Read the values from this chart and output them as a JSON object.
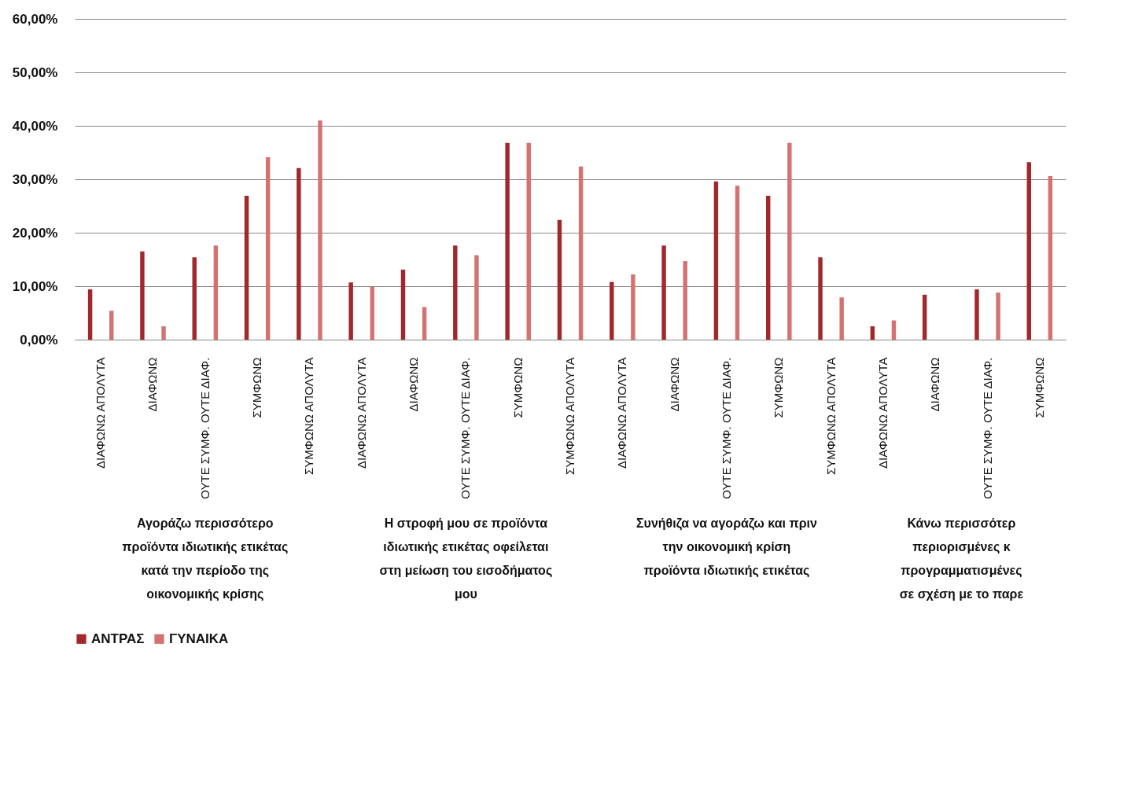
{
  "chart_data": {
    "type": "bar",
    "categories": [
      "ΔΙΑΦΩΝΩ ΑΠΟΛΥΤΑ",
      "ΔΙΑΦΩΝΩ",
      "ΟΥΤΕ ΣΥΜΦ. ΟΥΤΕ ΔΙΑΦ.",
      "ΣΥΜΦΩΝΩ",
      "ΣΥΜΦΩΝΩ ΑΠΟΛΥΤΑ",
      "ΔΙΑΦΩΝΩ ΑΠΟΛΥΤΑ",
      "ΔΙΑΦΩΝΩ",
      "ΟΥΤΕ ΣΥΜΦ. ΟΥΤΕ ΔΙΑΦ.",
      "ΣΥΜΦΩΝΩ",
      "ΣΥΜΦΩΝΩ ΑΠΟΛΥΤΑ",
      "ΔΙΑΦΩΝΩ ΑΠΟΛΥΤΑ",
      "ΔΙΑΦΩΝΩ",
      "ΟΥΤΕ ΣΥΜΦ. ΟΥΤΕ ΔΙΑΦ.",
      "ΣΥΜΦΩΝΩ",
      "ΣΥΜΦΩΝΩ ΑΠΟΛΥΤΑ",
      "ΔΙΑΦΩΝΩ ΑΠΟΛΥΤΑ",
      "ΔΙΑΦΩΝΩ",
      "ΟΥΤΕ ΣΥΜΦ. ΟΥΤΕ ΔΙΑΦ.",
      "ΣΥΜΦΩΝΩ"
    ],
    "series": [
      {
        "name": "ΑΝΤΡΑΣ",
        "color": "#a1282b",
        "values": [
          9.4,
          16.5,
          15.4,
          26.9,
          32.1,
          10.7,
          13.1,
          17.6,
          36.8,
          22.4,
          10.8,
          17.6,
          29.6,
          26.9,
          15.4,
          2.5,
          8.4,
          9.4,
          33.2
        ]
      },
      {
        "name": "ΓΥΝΑΙΚΑ",
        "color": "#d47272",
        "values": [
          5.4,
          2.5,
          17.6,
          34.1,
          41.0,
          9.9,
          6.1,
          15.8,
          36.8,
          32.4,
          12.2,
          14.7,
          28.8,
          36.8,
          7.9,
          3.6,
          0,
          8.8,
          30.6
        ]
      }
    ],
    "ylim": [
      0,
      60
    ],
    "yticks": [
      {
        "value": 0,
        "label": "0,00%"
      },
      {
        "value": 10,
        "label": "10,00%"
      },
      {
        "value": 20,
        "label": "20,00%"
      },
      {
        "value": 30,
        "label": "30,00%"
      },
      {
        "value": 40,
        "label": "40,00%"
      },
      {
        "value": 50,
        "label": "50,00%"
      },
      {
        "value": 60,
        "label": "60,00%"
      }
    ],
    "grid": "y",
    "legend": "bottom",
    "annotations": [
      "Αγοράζω περισσότερο\nπροϊόντα ιδιωτικής ετικέτας\nκατά την περίοδο της\nοικονομικής κρίσης",
      "Η στροφή μου σε προϊόντα\nιδιωτικής ετικέτας οφείλεται\nστη μείωση του εισοδήματος\nμου",
      "Συνήθιζα να αγοράζω και πριν\nτην οικονομική κρίση\nπροϊόντα ιδιωτικής ετικέτας",
      "Κάνω περισσότερ\nπεριορισμένες κ\nπρογραμματισμένες\nσε σχέση με το παρε"
    ]
  }
}
